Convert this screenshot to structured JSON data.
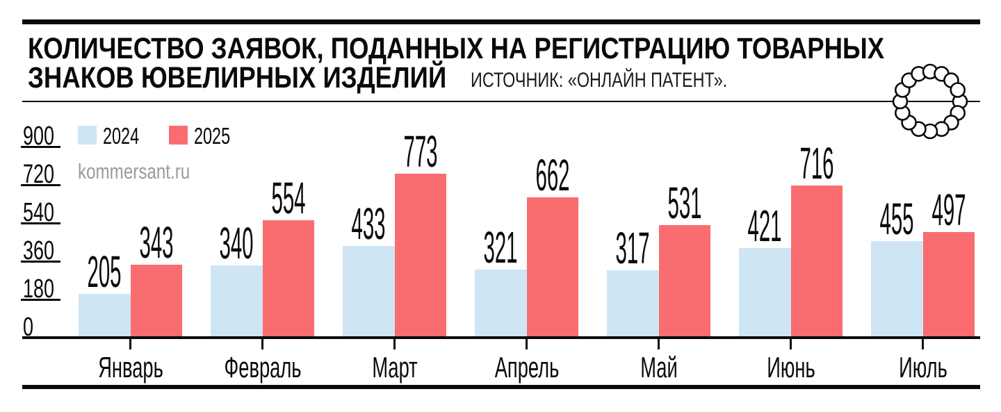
{
  "header": {
    "title_line1": "КОЛИЧЕСТВО ЗАЯВОК, ПОДАННЫХ НА РЕГИСТРАЦИЮ ТОВАРНЫХ",
    "title_line2": "ЗНАКОВ ЮВЕЛИРНЫХ ИЗДЕЛИЙ",
    "source": "ИСТОЧНИК: «ОНЛАЙН ПАТЕНТ»."
  },
  "watermark": {
    "text": "kommersant.ru",
    "color": "#9b9b9b"
  },
  "icons": {
    "brand": "pearl-necklace-icon"
  },
  "palette": {
    "bar_2024": "#cee5f4",
    "bar_2025": "#f96d71",
    "rules": "#0a0a0a",
    "text": "#0a0a0a"
  },
  "chart_data": {
    "type": "bar",
    "title": "КОЛИЧЕСТВО ЗАЯВОК, ПОДАННЫХ НА РЕГИСТРАЦИЮ ТОВАРНЫХ ЗНАКОВ ЮВЕЛИРНЫХ ИЗДЕЛИЙ",
    "source": "ИСТОЧНИК: «ОНЛАЙН ПАТЕНТ».",
    "categories": [
      "Январь",
      "Февраль",
      "Март",
      "Апрель",
      "Май",
      "Июнь",
      "Июль"
    ],
    "series": [
      {
        "name": "2024",
        "color": "#cee5f4",
        "values": [
          205,
          340,
          433,
          321,
          317,
          421,
          455
        ]
      },
      {
        "name": "2025",
        "color": "#f96d71",
        "values": [
          343,
          554,
          773,
          662,
          531,
          716,
          497
        ]
      }
    ],
    "y_ticks": [
      0,
      180,
      360,
      540,
      720,
      900
    ],
    "ylim": [
      0,
      900
    ],
    "xlabel": "",
    "ylabel": "",
    "grid": false,
    "value_labels": true,
    "legend_position": "top-left"
  }
}
